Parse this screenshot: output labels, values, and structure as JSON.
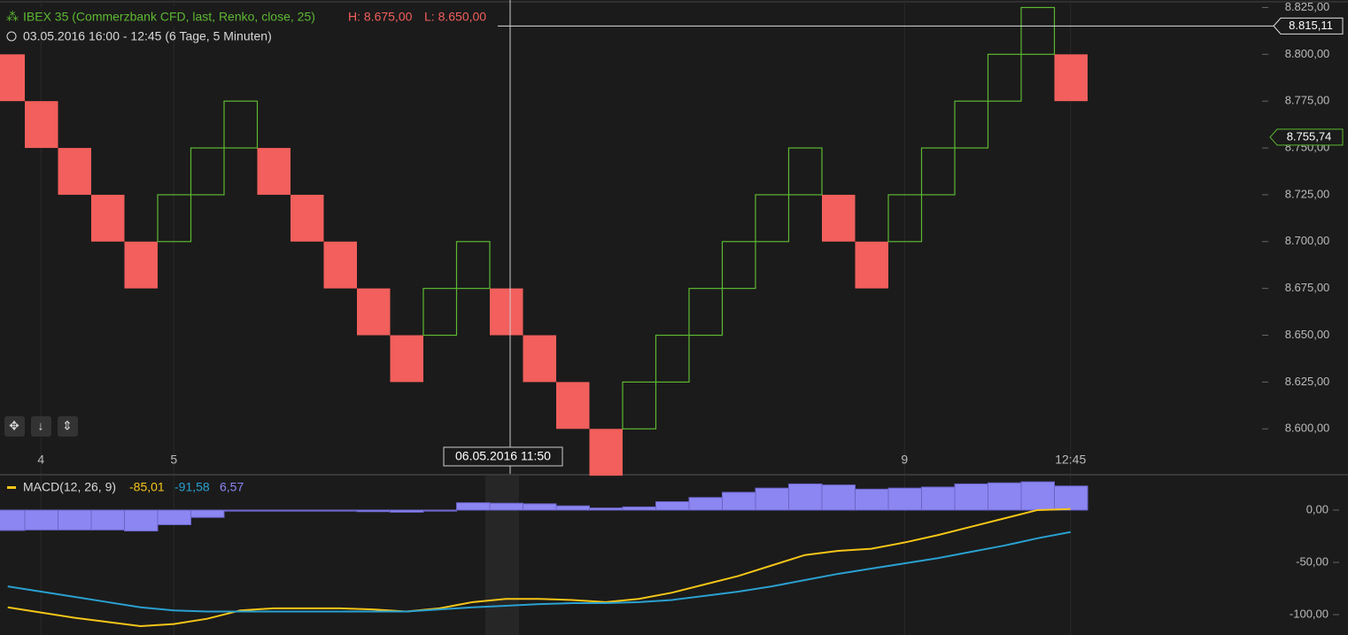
{
  "chart_data": [
    {
      "type": "renko",
      "title": "IBEX 35 (Commerzbank CFD, last, Renko, close, 25)",
      "high_label": "H: 8.675,00",
      "low_label": "L: 8.650,00",
      "subtitle": "03.05.2016 16:00 - 12:45 (6 Tage, 5 Minuten)",
      "categories": [
        null,
        "4",
        null,
        null,
        null,
        "5",
        null,
        null,
        null,
        null,
        null,
        null,
        null,
        null,
        null,
        null,
        null,
        null,
        null,
        null,
        null,
        null,
        null,
        null,
        null,
        null,
        null,
        "9",
        null,
        null,
        null,
        null,
        "12:45"
      ],
      "open": [
        8800,
        8775,
        8750,
        8725,
        8700,
        8700,
        8725,
        8750,
        8750,
        8725,
        8700,
        8675,
        8650,
        8650,
        8675,
        8675,
        8650,
        8625,
        8600,
        8600,
        8625,
        8650,
        8675,
        8700,
        8725,
        8725,
        8700,
        8700,
        8725,
        8750,
        8775,
        8800,
        8800
      ],
      "close": [
        8775,
        8750,
        8725,
        8700,
        8675,
        8725,
        8750,
        8775,
        8725,
        8700,
        8675,
        8650,
        8625,
        8675,
        8700,
        8650,
        8625,
        8600,
        8575,
        8625,
        8650,
        8675,
        8700,
        8725,
        8750,
        8700,
        8675,
        8725,
        8750,
        8775,
        8800,
        8825,
        8775
      ],
      "up_color": "#5db832",
      "down_color": "#f25f5c",
      "ylim": [
        8576,
        8829
      ],
      "yticks": [
        {
          "value": 8600,
          "label": "8.600,00"
        },
        {
          "value": 8625,
          "label": "8.625,00"
        },
        {
          "value": 8650,
          "label": "8.650,00"
        },
        {
          "value": 8675,
          "label": "8.675,00"
        },
        {
          "value": 8700,
          "label": "8.700,00"
        },
        {
          "value": 8725,
          "label": "8.725,00"
        },
        {
          "value": 8750,
          "label": "8.750,00"
        },
        {
          "value": 8775,
          "label": "8.775,00"
        },
        {
          "value": 8800,
          "label": "8.800,00"
        },
        {
          "value": 8825,
          "label": "8.825,00"
        }
      ],
      "crosshair_price": {
        "value": 8815.11,
        "label": "8.815,11"
      },
      "last_price": {
        "value": 8755.74,
        "label": "8.755,74"
      },
      "crosshair_date": "06.05.2016 11:50"
    },
    {
      "type": "macd",
      "title": "MACD(12, 26, 9)",
      "readout": [
        "-85,01",
        "-91,58",
        "6,57"
      ],
      "series": [
        {
          "color": "#8c86f2",
          "values": [
            -19.5,
            -19,
            -19,
            -19,
            -20,
            -14,
            -7,
            -1,
            -1,
            -1,
            -1,
            -1.5,
            -2,
            -1,
            7,
            6.57,
            6,
            4,
            2,
            3,
            8,
            12,
            17,
            21,
            25,
            24,
            20,
            21,
            22,
            25,
            26,
            27,
            23
          ]
        },
        {
          "color": "#f5c518",
          "values": [
            -93,
            -98,
            -103,
            -107,
            -111,
            -109,
            -104,
            -96,
            -94,
            -94,
            -94,
            -95,
            -97,
            -94,
            -88,
            -85.01,
            -85,
            -86,
            -88,
            -85,
            -79,
            -71,
            -63,
            -53,
            -43,
            -39,
            -37,
            -31,
            -24,
            -16,
            -8,
            0,
            1
          ]
        },
        {
          "color": "#2aa0d0",
          "values": [
            -73,
            -78,
            -83,
            -88,
            -93,
            -96,
            -97,
            -97,
            -97,
            -97,
            -97,
            -97,
            -97,
            -95,
            -93,
            -91.58,
            -90,
            -89,
            -89,
            -88,
            -86,
            -82,
            -78,
            -73,
            -67,
            -61,
            -56,
            -51,
            -46,
            -40,
            -34,
            -27,
            -21
          ]
        }
      ],
      "ylim": [
        -119.5,
        33
      ],
      "yticks": [
        {
          "value": 0,
          "label": "0,00"
        },
        {
          "value": -50,
          "label": "-50,00"
        },
        {
          "value": -100,
          "label": "-100,00"
        }
      ]
    }
  ]
}
